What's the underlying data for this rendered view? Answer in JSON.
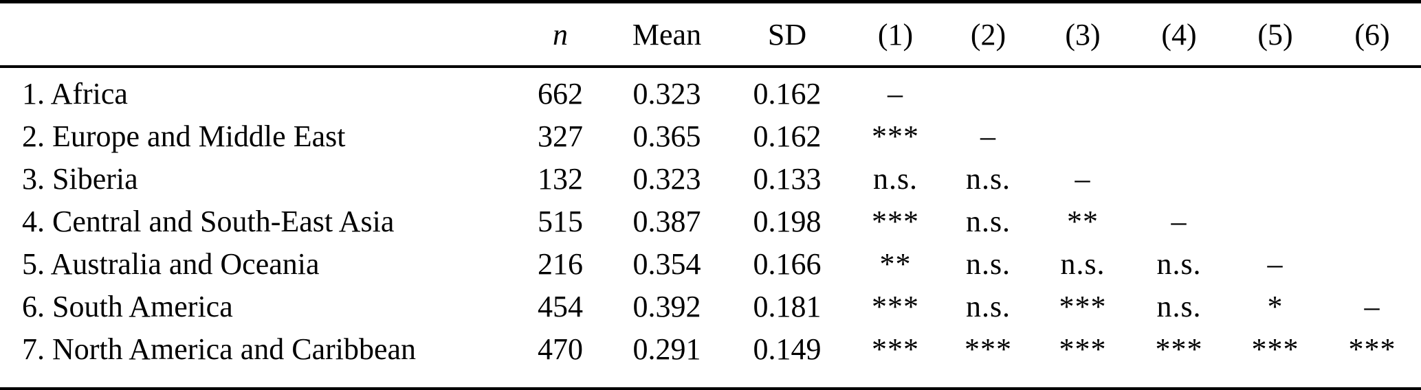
{
  "table": {
    "columns": {
      "region_label": "",
      "n_label": "n",
      "mean_label": "Mean",
      "sd_label": "SD",
      "comparison_labels": [
        "(1)",
        "(2)",
        "(3)",
        "(4)",
        "(5)",
        "(6)"
      ]
    },
    "rows": [
      {
        "region": "1. Africa",
        "n": "662",
        "mean": "0.323",
        "sd": "0.162",
        "c": [
          "–",
          "",
          "",
          "",
          "",
          ""
        ]
      },
      {
        "region": "2. Europe and Middle East",
        "n": "327",
        "mean": "0.365",
        "sd": "0.162",
        "c": [
          "***",
          "–",
          "",
          "",
          "",
          ""
        ]
      },
      {
        "region": "3. Siberia",
        "n": "132",
        "mean": "0.323",
        "sd": "0.133",
        "c": [
          "n.s.",
          "n.s.",
          "–",
          "",
          "",
          ""
        ]
      },
      {
        "region": "4. Central and South-East Asia",
        "n": "515",
        "mean": "0.387",
        "sd": "0.198",
        "c": [
          "***",
          "n.s.",
          "**",
          "–",
          "",
          ""
        ]
      },
      {
        "region": "5. Australia and Oceania",
        "n": "216",
        "mean": "0.354",
        "sd": "0.166",
        "c": [
          "**",
          "n.s.",
          "n.s.",
          "n.s.",
          "–",
          ""
        ]
      },
      {
        "region": "6. South America",
        "n": "454",
        "mean": "0.392",
        "sd": "0.181",
        "c": [
          "***",
          "n.s.",
          "***",
          "n.s.",
          "*",
          "–"
        ]
      },
      {
        "region": "7. North America and Caribbean",
        "n": "470",
        "mean": "0.291",
        "sd": "0.149",
        "c": [
          "***",
          "***",
          "***",
          "***",
          "***",
          "***"
        ]
      }
    ],
    "colors": {
      "text": "#000000",
      "rule": "#000000",
      "background": "#ffffff"
    }
  }
}
